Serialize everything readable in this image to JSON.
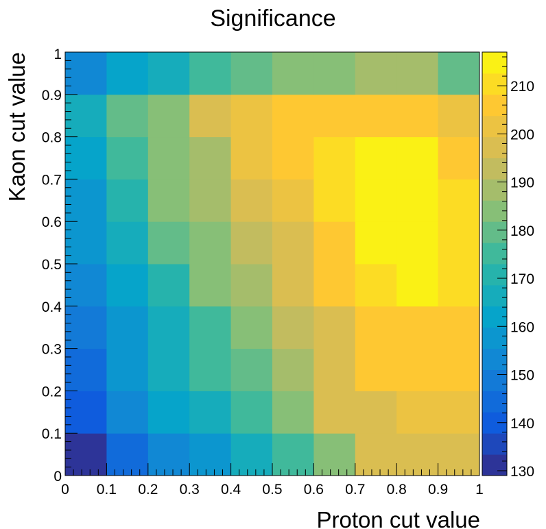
{
  "chart_data": {
    "type": "heatmap",
    "title": "Significance",
    "xlabel": "Proton cut value",
    "ylabel": "Kaon cut value",
    "xlim": [
      0,
      1
    ],
    "ylim": [
      0,
      1
    ],
    "x_bin_edges": [
      0,
      0.1,
      0.2,
      0.3,
      0.4,
      0.5,
      0.6,
      0.7,
      0.8,
      0.9,
      1.0
    ],
    "y_bin_edges": [
      0,
      0.1,
      0.2,
      0.3,
      0.4,
      0.5,
      0.6,
      0.7,
      0.8,
      0.9,
      1.0
    ],
    "x_ticks": [
      "0",
      "0.1",
      "0.2",
      "0.3",
      "0.4",
      "0.5",
      "0.6",
      "0.7",
      "0.8",
      "0.9",
      "1"
    ],
    "y_ticks": [
      "0",
      "0.1",
      "0.2",
      "0.3",
      "0.4",
      "0.5",
      "0.6",
      "0.7",
      "0.8",
      "0.9",
      "1"
    ],
    "z_range": [
      129,
      217
    ],
    "z_ticks": [
      "130",
      "140",
      "150",
      "160",
      "170",
      "180",
      "190",
      "200",
      "210"
    ],
    "z_rows_bottom_to_top": [
      [
        132,
        143,
        151,
        159,
        167,
        176,
        186,
        195,
        195,
        199
      ],
      [
        142,
        152,
        160,
        168,
        175,
        185,
        195,
        199,
        202,
        202
      ],
      [
        146,
        156,
        165,
        173,
        178,
        187,
        197,
        205,
        205,
        205
      ],
      [
        149,
        159,
        168,
        176,
        185,
        193,
        199,
        205,
        208,
        205
      ],
      [
        152,
        162,
        172,
        182,
        188,
        198,
        205,
        209,
        215,
        210
      ],
      [
        156,
        166,
        180,
        184,
        194,
        199,
        206,
        216,
        216,
        210
      ],
      [
        159,
        172,
        184,
        189,
        198,
        202,
        209,
        217,
        217,
        211
      ],
      [
        161,
        174,
        185,
        190,
        200,
        204,
        210,
        216,
        216,
        205
      ],
      [
        165,
        178,
        184,
        196,
        202,
        205,
        206,
        208,
        208,
        202
      ],
      [
        152,
        160,
        168,
        175,
        180,
        182,
        184,
        187,
        187,
        178
      ]
    ],
    "palette": "kBird",
    "palette_stops": [
      "#352a87",
      "#0f5cdd",
      "#1481d6",
      "#06a4ca",
      "#2eb7a4",
      "#87bf77",
      "#d1bb59",
      "#fec832",
      "#f9fb0e"
    ],
    "grid": false
  }
}
